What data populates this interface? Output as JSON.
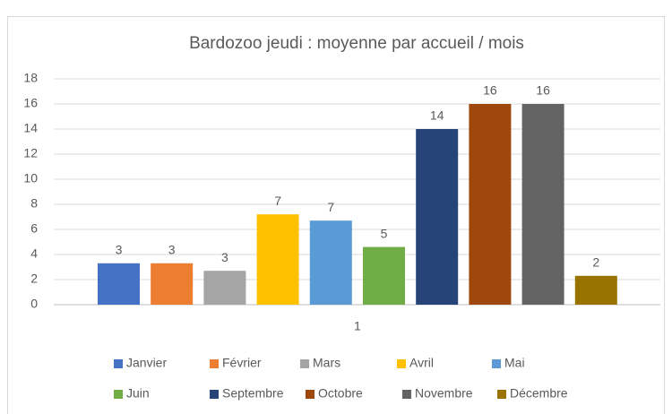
{
  "chart_data": {
    "type": "bar",
    "title": "Bardozoo jeudi : moyenne par accueil / mois",
    "categories": [
      "1"
    ],
    "series": [
      {
        "name": "Janvier",
        "color": "#4472c4",
        "values": [
          3.3
        ],
        "value_labels": [
          "3"
        ]
      },
      {
        "name": "Février",
        "color": "#ed7d31",
        "values": [
          3.3
        ],
        "value_labels": [
          "3"
        ]
      },
      {
        "name": "Mars",
        "color": "#a5a5a5",
        "values": [
          2.7
        ],
        "value_labels": [
          "3"
        ]
      },
      {
        "name": "Avril",
        "color": "#ffc000",
        "values": [
          7.2
        ],
        "value_labels": [
          "7"
        ]
      },
      {
        "name": "Mai",
        "color": "#5b9bd5",
        "values": [
          6.7
        ],
        "value_labels": [
          "7"
        ]
      },
      {
        "name": "Juin",
        "color": "#70ad47",
        "values": [
          4.6
        ],
        "value_labels": [
          "5"
        ]
      },
      {
        "name": "Septembre",
        "color": "#264478",
        "values": [
          14
        ],
        "value_labels": [
          "14"
        ]
      },
      {
        "name": "Octobre",
        "color": "#9e480e",
        "values": [
          16
        ],
        "value_labels": [
          "16"
        ]
      },
      {
        "name": "Novembre",
        "color": "#636363",
        "values": [
          16
        ],
        "value_labels": [
          "16"
        ]
      },
      {
        "name": "Décembre",
        "color": "#997300",
        "values": [
          2.3
        ],
        "value_labels": [
          "2"
        ]
      }
    ],
    "ylim": [
      0,
      18
    ],
    "yticks": [
      0,
      2,
      4,
      6,
      8,
      10,
      12,
      14,
      16,
      18
    ],
    "grid": true,
    "legend": "bottom"
  }
}
